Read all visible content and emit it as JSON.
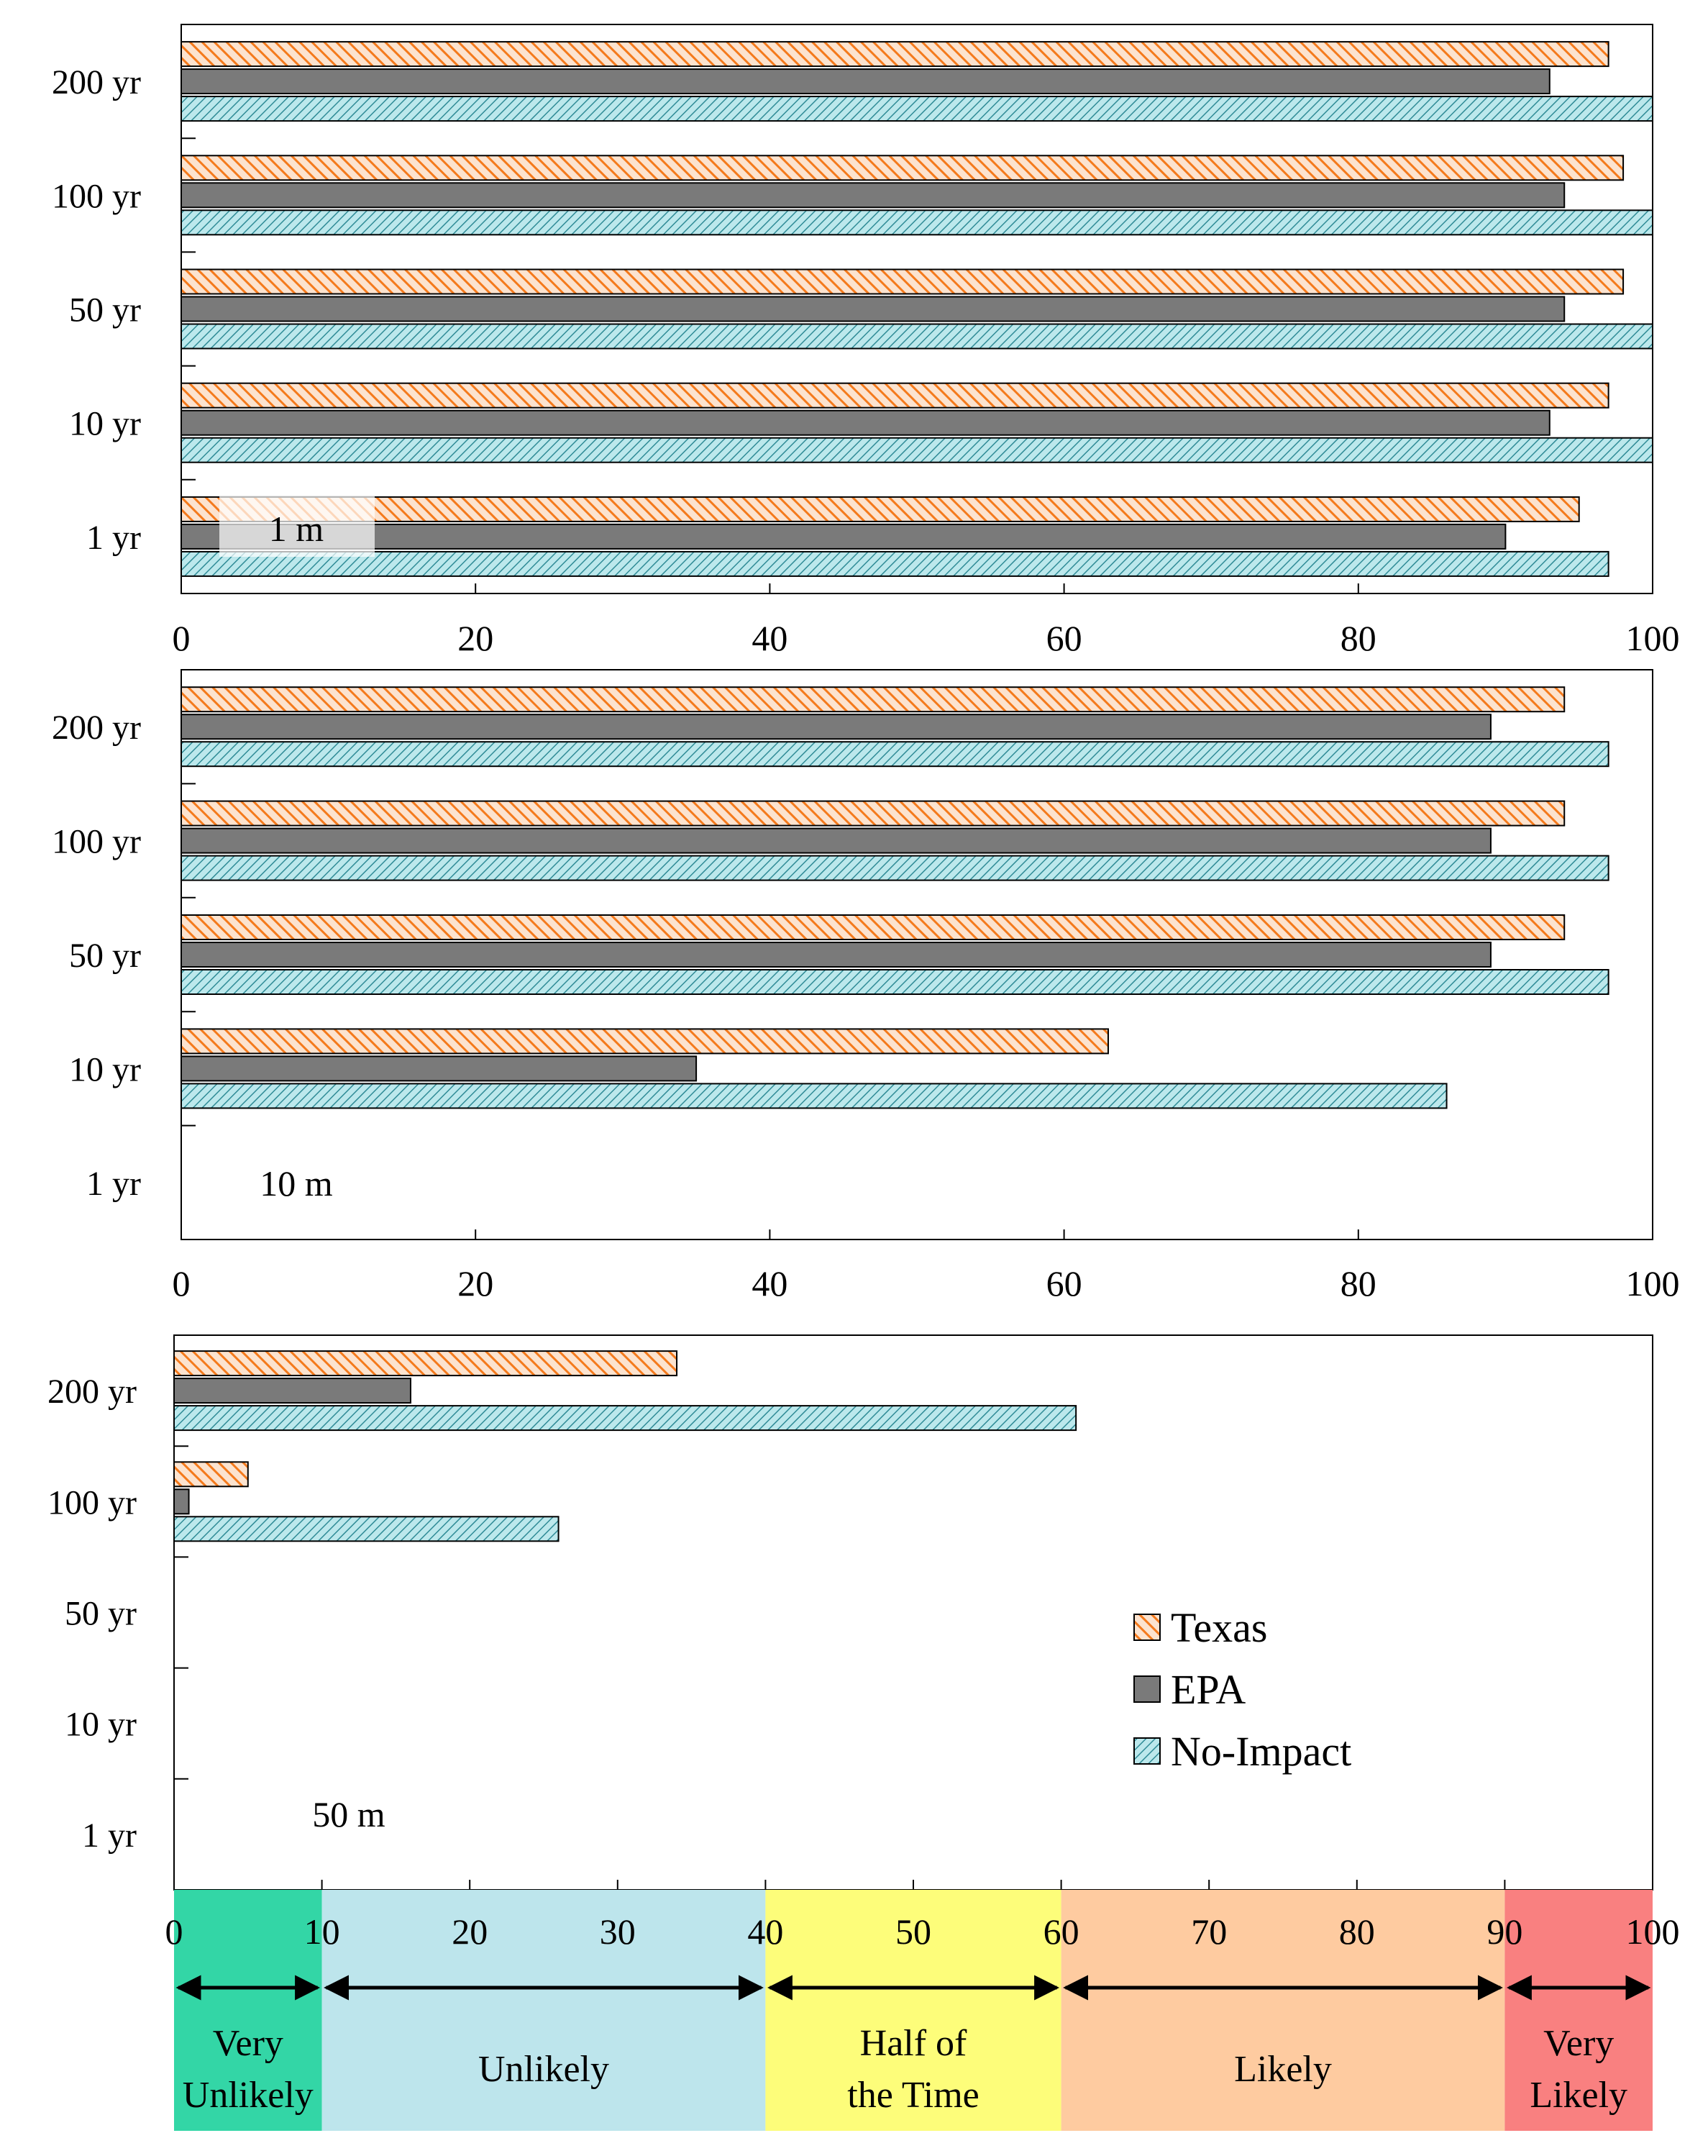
{
  "chart_data": [
    {
      "type": "bar",
      "orientation": "horizontal",
      "panel_label": "1 m",
      "categories": [
        "200 yr",
        "100 yr",
        "50 yr",
        "10 yr",
        "1 yr"
      ],
      "series": [
        {
          "name": "Texas",
          "values": [
            97,
            98,
            98,
            97,
            95
          ]
        },
        {
          "name": "EPA",
          "values": [
            93,
            94,
            94,
            93,
            90
          ]
        },
        {
          "name": "No-Impact",
          "values": [
            100,
            100,
            100,
            100,
            97
          ]
        }
      ],
      "xlim": [
        0,
        100
      ],
      "xticks": [
        "0",
        "20",
        "40",
        "60",
        "80",
        "100"
      ]
    },
    {
      "type": "bar",
      "orientation": "horizontal",
      "panel_label": "10 m",
      "categories": [
        "200 yr",
        "100 yr",
        "50 yr",
        "10 yr",
        "1 yr"
      ],
      "series": [
        {
          "name": "Texas",
          "values": [
            94,
            94,
            94,
            63,
            0
          ]
        },
        {
          "name": "EPA",
          "values": [
            89,
            89,
            89,
            35,
            0
          ]
        },
        {
          "name": "No-Impact",
          "values": [
            97,
            97,
            97,
            86,
            0
          ]
        }
      ],
      "xlim": [
        0,
        100
      ],
      "xticks": [
        "0",
        "20",
        "40",
        "60",
        "80",
        "100"
      ]
    },
    {
      "type": "bar",
      "orientation": "horizontal",
      "panel_label": "50 m",
      "categories": [
        "200 yr",
        "100 yr",
        "50 yr",
        "10 yr",
        "1 yr"
      ],
      "series": [
        {
          "name": "Texas",
          "values": [
            34,
            5,
            0,
            0,
            0
          ]
        },
        {
          "name": "EPA",
          "values": [
            16,
            1,
            0,
            0,
            0
          ]
        },
        {
          "name": "No-Impact",
          "values": [
            61,
            26,
            0,
            0,
            0
          ]
        }
      ],
      "xlim": [
        0,
        100
      ],
      "xticks": [
        "0",
        "10",
        "20",
        "30",
        "40",
        "50",
        "60",
        "70",
        "80",
        "90",
        "100"
      ],
      "legend": {
        "placement": "right",
        "entries": [
          "Texas",
          "EPA",
          "No-Impact"
        ]
      }
    }
  ],
  "likelihood_scale": [
    {
      "lines": [
        "Very",
        "Unlikely"
      ],
      "from": 0,
      "to": 10,
      "color": "#33d6a6"
    },
    {
      "lines": [
        "Unlikely"
      ],
      "from": 10,
      "to": 40,
      "color": "#bde5ec"
    },
    {
      "lines": [
        "Half of",
        "the Time"
      ],
      "from": 40,
      "to": 60,
      "color": "#fdfd7a"
    },
    {
      "lines": [
        "Likely"
      ],
      "from": 60,
      "to": 90,
      "color": "#fecba0"
    },
    {
      "lines": [
        "Very",
        "Likely"
      ],
      "from": 90,
      "to": 100,
      "color": "#f98080"
    }
  ],
  "colors": {
    "Texas_fill": "#fce3cf",
    "Texas_hatch": "#f47a1c",
    "EPA_fill": "#7a7a7a",
    "No-Impact_fill": "#bce8ec",
    "No-Impact_hatch": "#2f8b96"
  }
}
